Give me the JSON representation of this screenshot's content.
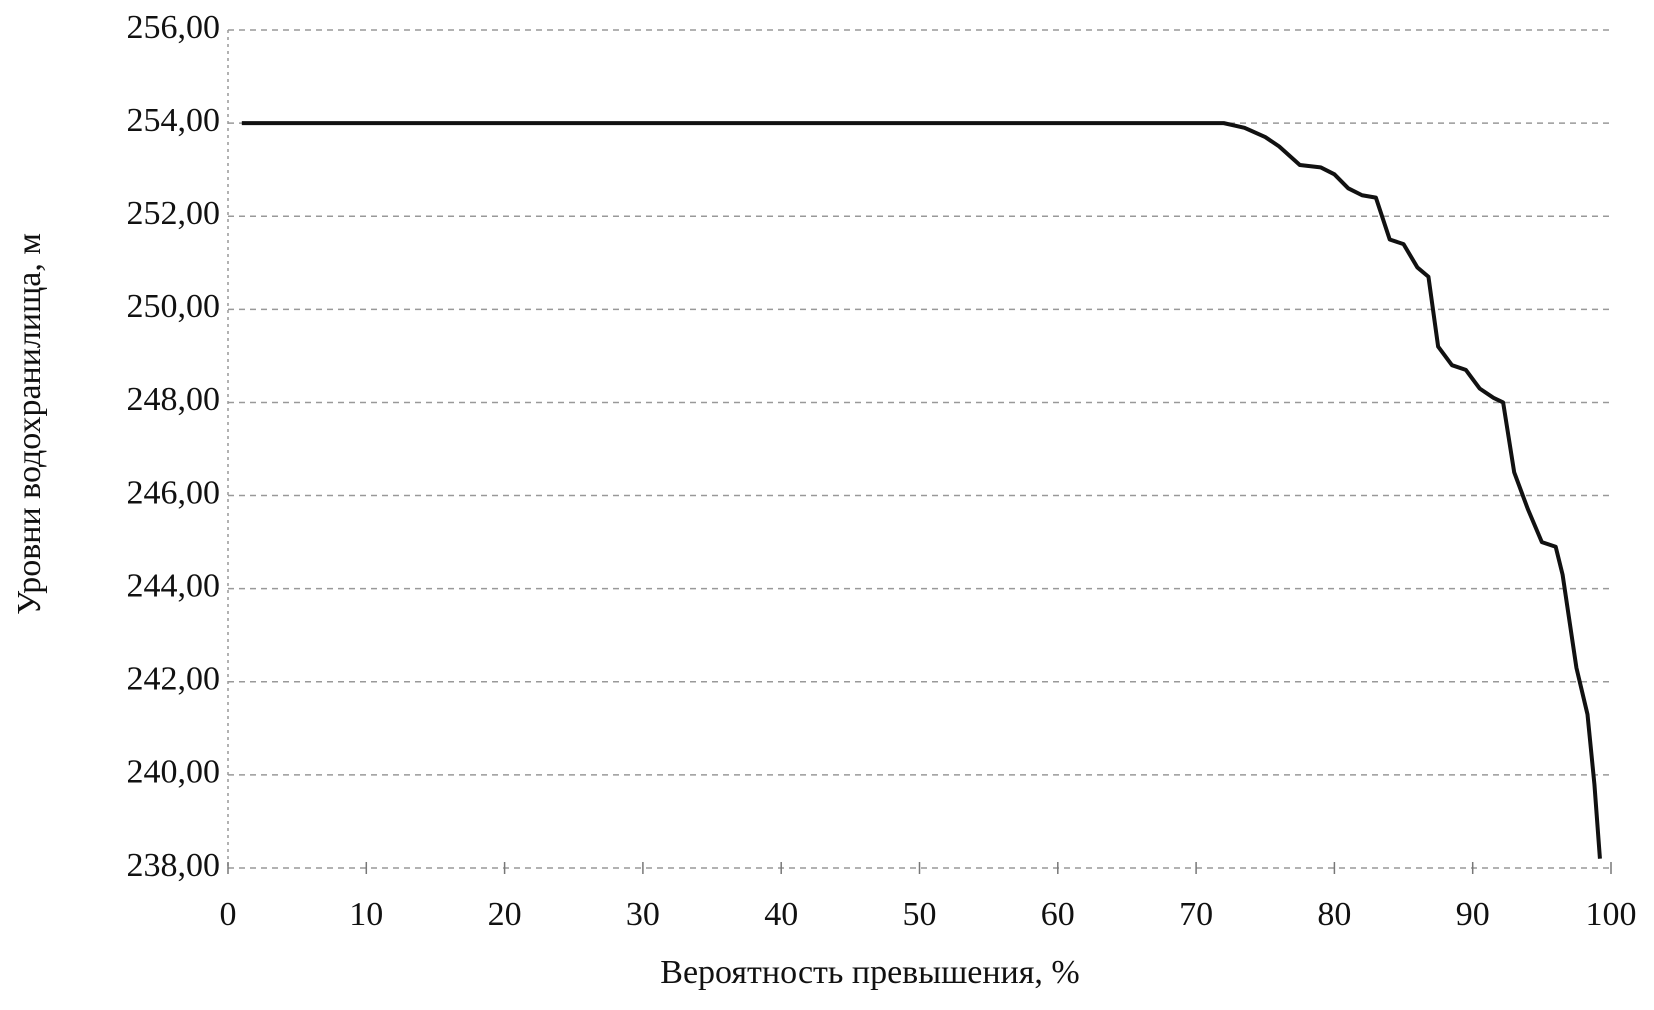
{
  "chart_data": {
    "type": "line",
    "x_label": "Вероятность превышения, %",
    "y_label": "Уровни водохранилища, м",
    "x": [
      1,
      72,
      73.5,
      75,
      76,
      77.5,
      79,
      80,
      81,
      82,
      83,
      84,
      85,
      86,
      86.8,
      87.5,
      88.5,
      89.5,
      90.5,
      91.5,
      92.2,
      93,
      94,
      95,
      96,
      96.5,
      97.5,
      98.3,
      98.8,
      99.2
    ],
    "values": [
      254,
      254,
      253.9,
      253.7,
      253.5,
      253.1,
      253.05,
      252.9,
      252.6,
      252.45,
      252.4,
      251.5,
      251.4,
      250.9,
      250.7,
      249.2,
      248.8,
      248.7,
      248.3,
      248.1,
      248.0,
      246.5,
      245.7,
      245.0,
      244.9,
      244.3,
      242.3,
      241.3,
      239.8,
      238.2
    ],
    "color": "#111111",
    "xlim": [
      0,
      100
    ],
    "xticks": [
      0,
      10,
      20,
      30,
      40,
      50,
      60,
      70,
      80,
      90,
      100
    ],
    "ylim": [
      238,
      256
    ],
    "yticks": [
      {
        "value": 238,
        "label": "238,00"
      },
      {
        "value": 240,
        "label": "240,00"
      },
      {
        "value": 242,
        "label": "242,00"
      },
      {
        "value": 244,
        "label": "244,00"
      },
      {
        "value": 246,
        "label": "246,00"
      },
      {
        "value": 248,
        "label": "248,00"
      },
      {
        "value": 250,
        "label": "250,00"
      },
      {
        "value": 252,
        "label": "252,00"
      },
      {
        "value": 254,
        "label": "254,00"
      },
      {
        "value": 256,
        "label": "256,00"
      }
    ],
    "grid": true
  }
}
